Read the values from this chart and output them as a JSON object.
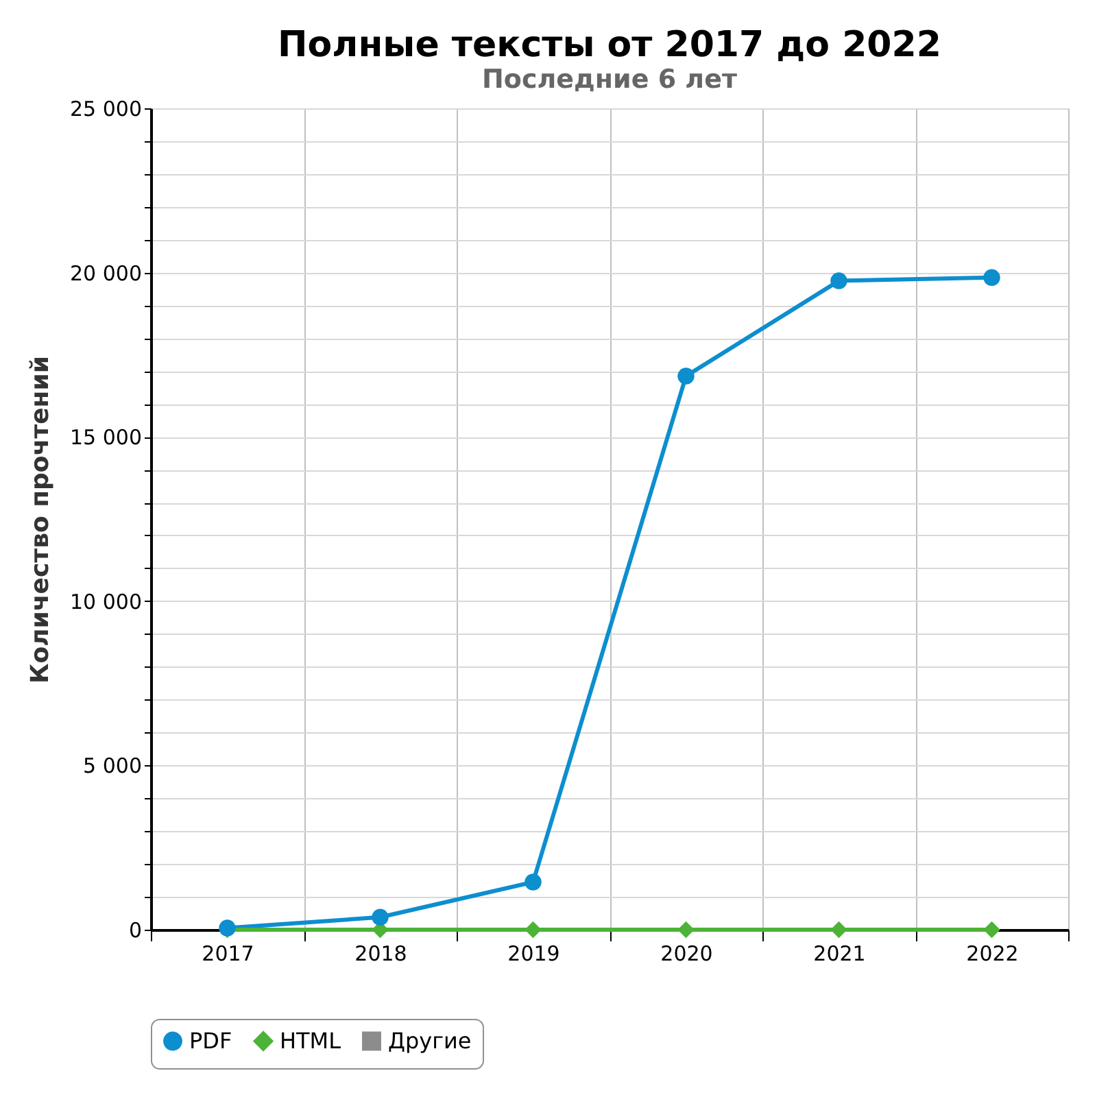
{
  "chart_data": {
    "type": "line",
    "title": "Полные тексты от 2017 до 2022",
    "subtitle": "Последние 6 лет",
    "ylabel": "Количество прочтений",
    "categories": [
      "2017",
      "2018",
      "2019",
      "2020",
      "2021",
      "2022"
    ],
    "series": [
      {
        "name": "PDF",
        "color": "#0d8ecf",
        "marker": "circle",
        "values": [
          50,
          380,
          1450,
          16850,
          19750,
          19850
        ]
      },
      {
        "name": "HTML",
        "color": "#4cb336",
        "marker": "diamond",
        "values": [
          0,
          0,
          0,
          0,
          0,
          0
        ]
      },
      {
        "name": "Другие",
        "color": "#8c8c8c",
        "marker": "square",
        "values": [
          null,
          null,
          null,
          null,
          null,
          null
        ]
      }
    ],
    "ylim": [
      0,
      25000
    ],
    "yticks": [
      {
        "value": 0,
        "label": "0"
      },
      {
        "value": 1000,
        "label": null
      },
      {
        "value": 2000,
        "label": null
      },
      {
        "value": 3000,
        "label": null
      },
      {
        "value": 4000,
        "label": null
      },
      {
        "value": 5000,
        "label": "5 000"
      },
      {
        "value": 6000,
        "label": null
      },
      {
        "value": 7000,
        "label": null
      },
      {
        "value": 8000,
        "label": null
      },
      {
        "value": 9000,
        "label": null
      },
      {
        "value": 10000,
        "label": "10 000"
      },
      {
        "value": 11000,
        "label": null
      },
      {
        "value": 12000,
        "label": null
      },
      {
        "value": 13000,
        "label": null
      },
      {
        "value": 14000,
        "label": null
      },
      {
        "value": 15000,
        "label": "15 000"
      },
      {
        "value": 16000,
        "label": null
      },
      {
        "value": 17000,
        "label": null
      },
      {
        "value": 18000,
        "label": null
      },
      {
        "value": 19000,
        "label": null
      },
      {
        "value": 20000,
        "label": "20 000"
      },
      {
        "value": 21000,
        "label": null
      },
      {
        "value": 22000,
        "label": null
      },
      {
        "value": 23000,
        "label": null
      },
      {
        "value": 24000,
        "label": null
      },
      {
        "value": 25000,
        "label": "25 000"
      }
    ],
    "grid": true,
    "legend": "bottom",
    "line_style": "solid"
  }
}
